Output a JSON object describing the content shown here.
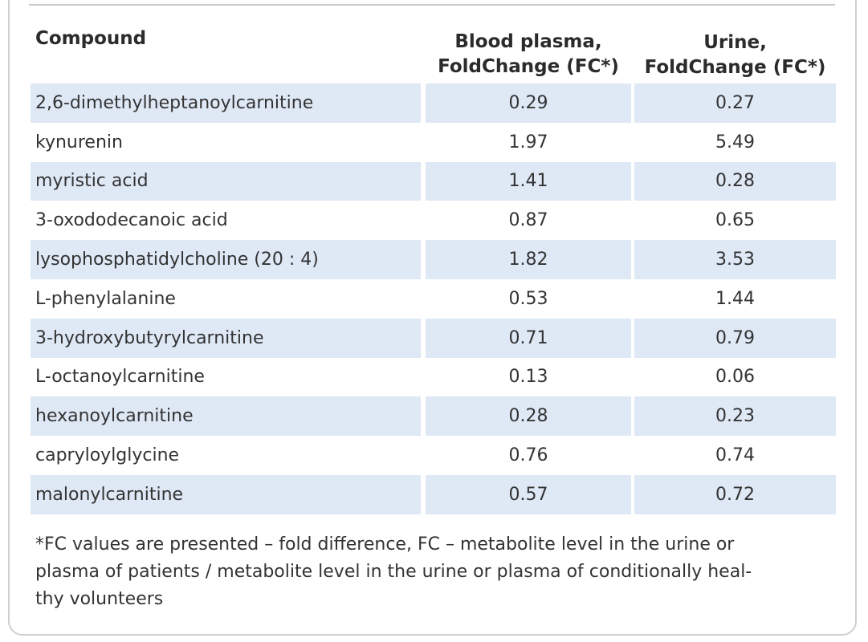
{
  "table": {
    "headers": {
      "compound": "Compound",
      "plasma_line1": "Blood plasma,",
      "plasma_line2": "FoldChange (FC*)",
      "urine_line1": "Urine,",
      "urine_line2": "FoldChange (FC*)"
    },
    "rows": [
      {
        "compound": "2,6-dimethylheptanoylcarnitine",
        "plasma": "0.29",
        "urine": "0.27"
      },
      {
        "compound": "kynurenin",
        "plasma": "1.97",
        "urine": "5.49"
      },
      {
        "compound": "myristic acid",
        "plasma": "1.41",
        "urine": "0.28"
      },
      {
        "compound": "3-oxododecanoic acid",
        "plasma": "0.87",
        "urine": "0.65"
      },
      {
        "compound": "lysophosphatidylcholine (20 : 4)",
        "plasma": "1.82",
        "urine": "3.53"
      },
      {
        "compound": "L-phenylalanine",
        "plasma": "0.53",
        "urine": "1.44"
      },
      {
        "compound": "3-hydroxybutyrylcarnitine",
        "plasma": "0.71",
        "urine": "0.79"
      },
      {
        "compound": "L-octanoylcarnitine",
        "plasma": "0.13",
        "urine": "0.06"
      },
      {
        "compound": "hexanoylcarnitine",
        "plasma": "0.28",
        "urine": "0.23"
      },
      {
        "compound": "capryloylglycine",
        "plasma": "0.76",
        "urine": "0.74"
      },
      {
        "compound": "malonylcarnitine",
        "plasma": "0.57",
        "urine": "0.72"
      }
    ],
    "footnote": {
      "line1": "*FC values are presented – fold difference, FC – metabolite level in the urine or",
      "line2": "plasma of patients / metabolite level in the urine or plasma of conditionally heal-",
      "line3": "thy volunteers"
    }
  },
  "colors": {
    "shaded_row": "#dfe9f6",
    "text": "#333333",
    "frame_border": "#cfcfcf"
  }
}
